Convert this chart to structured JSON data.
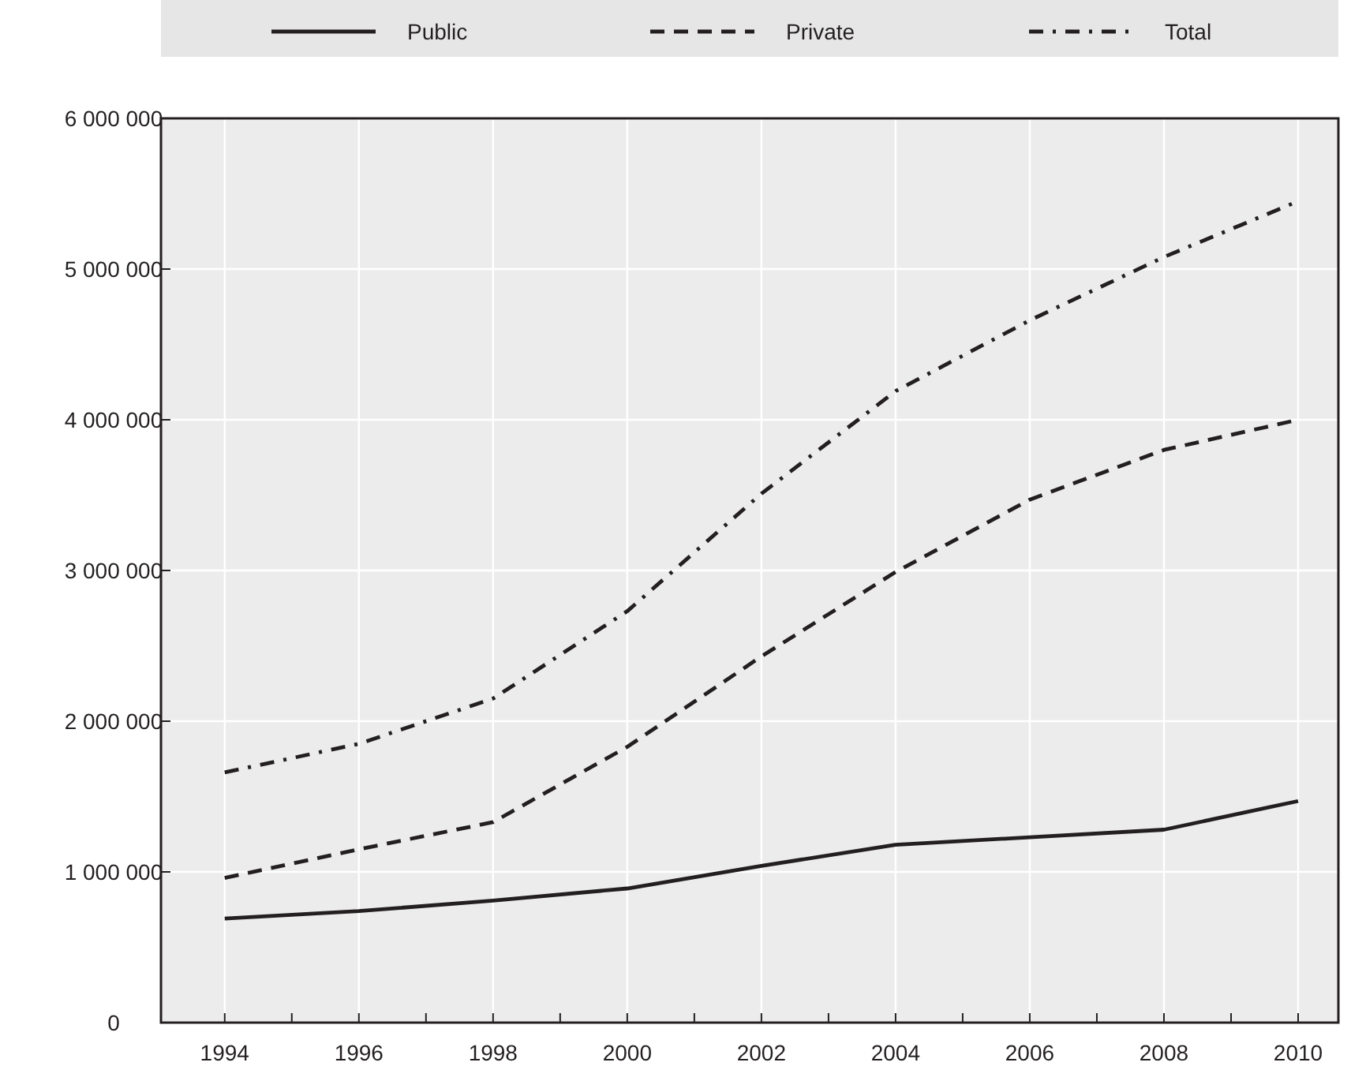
{
  "chart_data": {
    "type": "line",
    "x": [
      1994,
      1996,
      1998,
      2000,
      2002,
      2004,
      2006,
      2008,
      2010
    ],
    "series": [
      {
        "name": "Public",
        "color": "#231f20",
        "line_style": "solid",
        "values": [
          690000,
          740000,
          810000,
          890000,
          1040000,
          1180000,
          1230000,
          1280000,
          1470000
        ]
      },
      {
        "name": "Private",
        "color": "#231f20",
        "line_style": "dashed",
        "values": [
          960000,
          1150000,
          1330000,
          1830000,
          2430000,
          2990000,
          3470000,
          3800000,
          4000000
        ]
      },
      {
        "name": "Total",
        "color": "#231f20",
        "line_style": "dashdot",
        "values": [
          1660000,
          1850000,
          2150000,
          2730000,
          3510000,
          4190000,
          4660000,
          5080000,
          5450000
        ]
      }
    ],
    "xlim": [
      1993.05,
      2010.6
    ],
    "xticks": [
      {
        "value": 1994,
        "label": "1994"
      },
      {
        "value": 1995,
        "label": null
      },
      {
        "value": 1996,
        "label": "1996"
      },
      {
        "value": 1997,
        "label": null
      },
      {
        "value": 1998,
        "label": "1998"
      },
      {
        "value": 1999,
        "label": null
      },
      {
        "value": 2000,
        "label": "2000"
      },
      {
        "value": 2001,
        "label": null
      },
      {
        "value": 2002,
        "label": "2002"
      },
      {
        "value": 2003,
        "label": null
      },
      {
        "value": 2004,
        "label": "2004"
      },
      {
        "value": 2005,
        "label": null
      },
      {
        "value": 2006,
        "label": "2006"
      },
      {
        "value": 2007,
        "label": null
      },
      {
        "value": 2008,
        "label": "2008"
      },
      {
        "value": 2009,
        "label": null
      },
      {
        "value": 2010,
        "label": "2010"
      }
    ],
    "ylim": [
      0,
      6000000
    ],
    "yticks": [
      {
        "value": 0,
        "label": "0"
      },
      {
        "value": 1000000,
        "label": "1 000 000"
      },
      {
        "value": 2000000,
        "label": "2 000 000"
      },
      {
        "value": 3000000,
        "label": "3 000 000"
      },
      {
        "value": 4000000,
        "label": "4 000 000"
      },
      {
        "value": 5000000,
        "label": "5 000 000"
      },
      {
        "value": 6000000,
        "label": "6 000 000"
      }
    ],
    "grid": true,
    "legend": "top",
    "marker": "none"
  }
}
